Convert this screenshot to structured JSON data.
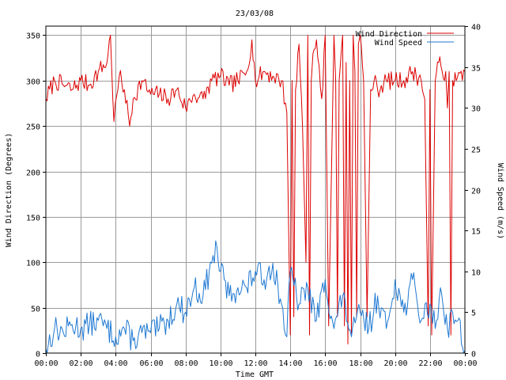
{
  "chart_data": {
    "type": "line",
    "title": "23/03/08",
    "xlabel": "Time GMT",
    "ylabel_left": "Wind Direction (Degrees)",
    "ylabel_right": "Wind Speed (m/s)",
    "x_range_hours": [
      0,
      24
    ],
    "x_tick_labels": [
      "00:00",
      "02:00",
      "04:00",
      "06:00",
      "08:00",
      "10:00",
      "12:00",
      "14:00",
      "16:00",
      "18:00",
      "20:00",
      "22:00",
      "00:00"
    ],
    "ylim_left": [
      0,
      360
    ],
    "y_ticks_left": [
      0,
      50,
      100,
      150,
      200,
      250,
      300,
      350
    ],
    "ylim_right": [
      0,
      40
    ],
    "y_ticks_right": [
      0,
      5,
      10,
      15,
      20,
      25,
      30,
      35,
      40
    ],
    "grid": true,
    "legend_position": "top-right",
    "colors": {
      "wind_direction": "#dd0000",
      "wind_speed": "#1e78d2"
    },
    "series": [
      {
        "name": "Wind Direction",
        "axis": "left",
        "x": [
          0,
          0.5,
          1,
          1.5,
          2,
          2.5,
          3,
          3.5,
          3.7,
          3.9,
          4.2,
          4.5,
          4.8,
          5,
          5.5,
          6,
          6.5,
          7,
          7.5,
          8,
          8.5,
          9,
          9.5,
          10,
          10.5,
          11,
          11.5,
          11.8,
          12,
          12.5,
          13,
          13.5,
          13.8,
          13.9,
          14,
          14.1,
          14.2,
          14.3,
          14.5,
          14.7,
          14.9,
          15,
          15.1,
          15.2,
          15.3,
          15.5,
          15.8,
          16,
          16.2,
          16.5,
          16.6,
          16.7,
          16.8,
          17,
          17.1,
          17.2,
          17.3,
          17.4,
          17.5,
          17.6,
          17.7,
          17.8,
          17.9,
          18,
          18.2,
          18.4,
          18.6,
          18.8,
          19,
          19.5,
          20,
          20.5,
          21,
          21.5,
          21.7,
          21.9,
          22,
          22.1,
          22.3,
          22.5,
          22.7,
          22.9,
          23,
          23.1,
          23.2,
          23.3,
          23.5,
          24
        ],
        "values": [
          280,
          300,
          295,
          290,
          300,
          295,
          310,
          320,
          350,
          255,
          305,
          290,
          250,
          280,
          300,
          285,
          285,
          280,
          290,
          270,
          285,
          280,
          300,
          305,
          295,
          300,
          310,
          345,
          300,
          310,
          305,
          300,
          265,
          140,
          20,
          300,
          40,
          290,
          340,
          250,
          100,
          350,
          20,
          300,
          330,
          345,
          280,
          350,
          30,
          350,
          300,
          40,
          300,
          350,
          30,
          320,
          10,
          300,
          20,
          350,
          310,
          40,
          340,
          350,
          300,
          40,
          290,
          300,
          290,
          300,
          300,
          300,
          310,
          300,
          280,
          30,
          290,
          20,
          300,
          320,
          310,
          310,
          270,
          310,
          20,
          300,
          300,
          310
        ]
      },
      {
        "name": "Wind Speed",
        "axis": "right",
        "x": [
          0,
          0.5,
          1,
          1.5,
          2,
          2.5,
          3,
          3.5,
          4,
          4.5,
          5,
          5.5,
          6,
          6.5,
          7,
          7.5,
          8,
          8.5,
          9,
          9.5,
          9.8,
          10,
          10.5,
          11,
          11.5,
          12,
          12.5,
          13,
          13.5,
          13.8,
          14,
          14.5,
          15,
          15.5,
          16,
          16.5,
          17,
          17.5,
          18,
          18.5,
          19,
          19.5,
          20,
          20.5,
          21,
          21.5,
          22,
          22.3,
          22.6,
          23,
          23.3,
          23.6,
          24
        ],
        "values": [
          0.5,
          3,
          2.5,
          3.5,
          3,
          3.5,
          4,
          3,
          2,
          3,
          1.5,
          2.5,
          2.5,
          3,
          4,
          6,
          5,
          8,
          7,
          11,
          13,
          10,
          7,
          8,
          8,
          10,
          9,
          11,
          6,
          2,
          10,
          6,
          8,
          4,
          9,
          3,
          7,
          2,
          5,
          3,
          7,
          3,
          9,
          5,
          9,
          4,
          6,
          3,
          8,
          3,
          5,
          4,
          0.3
        ]
      }
    ]
  }
}
